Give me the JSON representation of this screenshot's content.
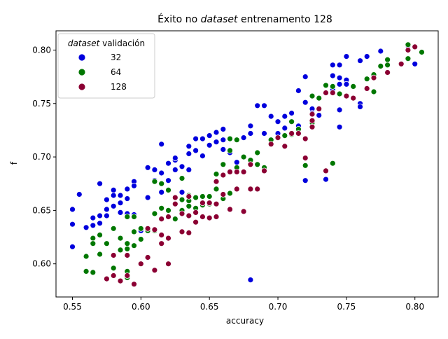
{
  "chart_data": {
    "type": "scatter",
    "title_prefix": "Éxito no ",
    "title_italic": "dataset",
    "title_suffix": " entrenamento 128",
    "xlabel": "accuracy",
    "ylabel": "f",
    "xlim": [
      0.538,
      0.817
    ],
    "ylim": [
      0.569,
      0.818
    ],
    "xticks": [
      0.55,
      0.6,
      0.65,
      0.7,
      0.75,
      0.8
    ],
    "xtick_labels": [
      "0.55",
      "0.60",
      "0.65",
      "0.70",
      "0.75",
      "0.80"
    ],
    "yticks": [
      0.6,
      0.65,
      0.7,
      0.75,
      0.8
    ],
    "ytick_labels": [
      "0.60",
      "0.65",
      "0.70",
      "0.75",
      "0.80"
    ],
    "grid": false,
    "legend": {
      "position": "top-left",
      "title_italic": "dataset",
      "title_suffix": " validación",
      "entries": [
        "32",
        "64",
        "128"
      ]
    },
    "series": [
      {
        "name": "32",
        "color": "#0000dd",
        "points": [
          [
            0.55,
            0.651
          ],
          [
            0.55,
            0.637
          ],
          [
            0.55,
            0.616
          ],
          [
            0.555,
            0.665
          ],
          [
            0.56,
            0.634
          ],
          [
            0.565,
            0.643
          ],
          [
            0.565,
            0.636
          ],
          [
            0.57,
            0.675
          ],
          [
            0.57,
            0.645
          ],
          [
            0.57,
            0.638
          ],
          [
            0.575,
            0.66
          ],
          [
            0.575,
            0.651
          ],
          [
            0.575,
            0.645
          ],
          [
            0.58,
            0.669
          ],
          [
            0.58,
            0.664
          ],
          [
            0.58,
            0.654
          ],
          [
            0.585,
            0.664
          ],
          [
            0.585,
            0.657
          ],
          [
            0.585,
            0.648
          ],
          [
            0.59,
            0.67
          ],
          [
            0.59,
            0.661
          ],
          [
            0.59,
            0.647
          ],
          [
            0.595,
            0.677
          ],
          [
            0.595,
            0.673
          ],
          [
            0.595,
            0.646
          ],
          [
            0.6,
            0.631
          ],
          [
            0.605,
            0.69
          ],
          [
            0.605,
            0.662
          ],
          [
            0.61,
            0.688
          ],
          [
            0.61,
            0.678
          ],
          [
            0.615,
            0.712
          ],
          [
            0.615,
            0.685
          ],
          [
            0.615,
            0.667
          ],
          [
            0.62,
            0.694
          ],
          [
            0.62,
            0.678
          ],
          [
            0.625,
            0.697
          ],
          [
            0.625,
            0.688
          ],
          [
            0.625,
            0.699
          ],
          [
            0.63,
            0.691
          ],
          [
            0.63,
            0.667
          ],
          [
            0.635,
            0.71
          ],
          [
            0.635,
            0.703
          ],
          [
            0.635,
            0.688
          ],
          [
            0.64,
            0.717
          ],
          [
            0.64,
            0.706
          ],
          [
            0.645,
            0.717
          ],
          [
            0.645,
            0.701
          ],
          [
            0.65,
            0.72
          ],
          [
            0.65,
            0.711
          ],
          [
            0.655,
            0.723
          ],
          [
            0.655,
            0.714
          ],
          [
            0.66,
            0.726
          ],
          [
            0.66,
            0.716
          ],
          [
            0.66,
            0.707
          ],
          [
            0.665,
            0.704
          ],
          [
            0.67,
            0.695
          ],
          [
            0.675,
            0.718
          ],
          [
            0.68,
            0.729
          ],
          [
            0.68,
            0.722
          ],
          [
            0.68,
            0.585
          ],
          [
            0.685,
            0.748
          ],
          [
            0.69,
            0.748
          ],
          [
            0.69,
            0.722
          ],
          [
            0.695,
            0.738
          ],
          [
            0.7,
            0.733
          ],
          [
            0.7,
            0.722
          ],
          [
            0.705,
            0.738
          ],
          [
            0.705,
            0.727
          ],
          [
            0.71,
            0.741
          ],
          [
            0.715,
            0.762
          ],
          [
            0.715,
            0.729
          ],
          [
            0.72,
            0.775
          ],
          [
            0.72,
            0.751
          ],
          [
            0.72,
            0.678
          ],
          [
            0.725,
            0.757
          ],
          [
            0.725,
            0.745
          ],
          [
            0.725,
            0.741
          ],
          [
            0.73,
            0.745
          ],
          [
            0.73,
            0.739
          ],
          [
            0.735,
            0.679
          ],
          [
            0.74,
            0.786
          ],
          [
            0.74,
            0.776
          ],
          [
            0.74,
            0.763
          ],
          [
            0.745,
            0.786
          ],
          [
            0.745,
            0.774
          ],
          [
            0.745,
            0.768
          ],
          [
            0.745,
            0.744
          ],
          [
            0.745,
            0.728
          ],
          [
            0.75,
            0.794
          ],
          [
            0.75,
            0.772
          ],
          [
            0.75,
            0.768
          ],
          [
            0.76,
            0.79
          ],
          [
            0.76,
            0.75
          ],
          [
            0.76,
            0.747
          ],
          [
            0.765,
            0.794
          ],
          [
            0.775,
            0.799
          ],
          [
            0.795,
            0.804
          ],
          [
            0.8,
            0.787
          ]
        ]
      },
      {
        "name": "64",
        "color": "#007700",
        "points": [
          [
            0.56,
            0.607
          ],
          [
            0.56,
            0.593
          ],
          [
            0.565,
            0.624
          ],
          [
            0.565,
            0.619
          ],
          [
            0.565,
            0.592
          ],
          [
            0.57,
            0.627
          ],
          [
            0.57,
            0.609
          ],
          [
            0.575,
            0.619
          ],
          [
            0.58,
            0.633
          ],
          [
            0.58,
            0.596
          ],
          [
            0.585,
            0.624
          ],
          [
            0.585,
            0.613
          ],
          [
            0.59,
            0.644
          ],
          [
            0.59,
            0.619
          ],
          [
            0.59,
            0.614
          ],
          [
            0.59,
            0.593
          ],
          [
            0.59,
            0.587
          ],
          [
            0.595,
            0.644
          ],
          [
            0.595,
            0.63
          ],
          [
            0.595,
            0.617
          ],
          [
            0.6,
            0.633
          ],
          [
            0.6,
            0.623
          ],
          [
            0.605,
            0.631
          ],
          [
            0.61,
            0.677
          ],
          [
            0.61,
            0.647
          ],
          [
            0.61,
            0.631
          ],
          [
            0.615,
            0.675
          ],
          [
            0.615,
            0.652
          ],
          [
            0.62,
            0.669
          ],
          [
            0.62,
            0.65
          ],
          [
            0.625,
            0.656
          ],
          [
            0.625,
            0.642
          ],
          [
            0.63,
            0.68
          ],
          [
            0.63,
            0.66
          ],
          [
            0.63,
            0.65
          ],
          [
            0.635,
            0.664
          ],
          [
            0.635,
            0.659
          ],
          [
            0.635,
            0.654
          ],
          [
            0.64,
            0.662
          ],
          [
            0.64,
            0.652
          ],
          [
            0.645,
            0.663
          ],
          [
            0.645,
            0.655
          ],
          [
            0.65,
            0.663
          ],
          [
            0.65,
            0.656
          ],
          [
            0.655,
            0.684
          ],
          [
            0.655,
            0.67
          ],
          [
            0.66,
            0.693
          ],
          [
            0.66,
            0.661
          ],
          [
            0.665,
            0.717
          ],
          [
            0.665,
            0.706
          ],
          [
            0.665,
            0.666
          ],
          [
            0.67,
            0.716
          ],
          [
            0.67,
            0.69
          ],
          [
            0.675,
            0.7
          ],
          [
            0.68,
            0.697
          ],
          [
            0.685,
            0.704
          ],
          [
            0.685,
            0.693
          ],
          [
            0.69,
            0.69
          ],
          [
            0.695,
            0.716
          ],
          [
            0.7,
            0.718
          ],
          [
            0.705,
            0.72
          ],
          [
            0.71,
            0.733
          ],
          [
            0.71,
            0.721
          ],
          [
            0.715,
            0.726
          ],
          [
            0.72,
            0.692
          ],
          [
            0.725,
            0.757
          ],
          [
            0.725,
            0.732
          ],
          [
            0.73,
            0.755
          ],
          [
            0.735,
            0.767
          ],
          [
            0.74,
            0.766
          ],
          [
            0.74,
            0.694
          ],
          [
            0.745,
            0.759
          ],
          [
            0.755,
            0.766
          ],
          [
            0.765,
            0.773
          ],
          [
            0.77,
            0.777
          ],
          [
            0.77,
            0.761
          ],
          [
            0.775,
            0.785
          ],
          [
            0.78,
            0.791
          ],
          [
            0.78,
            0.786
          ],
          [
            0.795,
            0.805
          ],
          [
            0.795,
            0.792
          ],
          [
            0.805,
            0.798
          ]
        ]
      },
      {
        "name": "128",
        "color": "#8b0033",
        "points": [
          [
            0.575,
            0.586
          ],
          [
            0.58,
            0.608
          ],
          [
            0.58,
            0.589
          ],
          [
            0.585,
            0.584
          ],
          [
            0.59,
            0.608
          ],
          [
            0.59,
            0.589
          ],
          [
            0.595,
            0.581
          ],
          [
            0.6,
            0.6
          ],
          [
            0.605,
            0.633
          ],
          [
            0.605,
            0.606
          ],
          [
            0.61,
            0.632
          ],
          [
            0.61,
            0.594
          ],
          [
            0.615,
            0.642
          ],
          [
            0.615,
            0.627
          ],
          [
            0.615,
            0.619
          ],
          [
            0.62,
            0.644
          ],
          [
            0.62,
            0.624
          ],
          [
            0.62,
            0.6
          ],
          [
            0.625,
            0.662
          ],
          [
            0.625,
            0.656
          ],
          [
            0.63,
            0.647
          ],
          [
            0.63,
            0.63
          ],
          [
            0.635,
            0.663
          ],
          [
            0.635,
            0.645
          ],
          [
            0.635,
            0.629
          ],
          [
            0.64,
            0.648
          ],
          [
            0.64,
            0.639
          ],
          [
            0.645,
            0.657
          ],
          [
            0.645,
            0.644
          ],
          [
            0.65,
            0.657
          ],
          [
            0.65,
            0.643
          ],
          [
            0.655,
            0.677
          ],
          [
            0.655,
            0.656
          ],
          [
            0.655,
            0.644
          ],
          [
            0.66,
            0.683
          ],
          [
            0.66,
            0.665
          ],
          [
            0.665,
            0.686
          ],
          [
            0.665,
            0.651
          ],
          [
            0.67,
            0.686
          ],
          [
            0.67,
            0.67
          ],
          [
            0.675,
            0.686
          ],
          [
            0.675,
            0.649
          ],
          [
            0.68,
            0.693
          ],
          [
            0.68,
            0.67
          ],
          [
            0.685,
            0.67
          ],
          [
            0.69,
            0.687
          ],
          [
            0.695,
            0.712
          ],
          [
            0.7,
            0.718
          ],
          [
            0.705,
            0.71
          ],
          [
            0.71,
            0.722
          ],
          [
            0.715,
            0.722
          ],
          [
            0.72,
            0.717
          ],
          [
            0.72,
            0.699
          ],
          [
            0.725,
            0.74
          ],
          [
            0.725,
            0.734
          ],
          [
            0.725,
            0.728
          ],
          [
            0.73,
            0.745
          ],
          [
            0.735,
            0.76
          ],
          [
            0.735,
            0.687
          ],
          [
            0.74,
            0.76
          ],
          [
            0.75,
            0.757
          ],
          [
            0.755,
            0.755
          ],
          [
            0.765,
            0.764
          ],
          [
            0.77,
            0.774
          ],
          [
            0.78,
            0.779
          ],
          [
            0.79,
            0.787
          ],
          [
            0.795,
            0.8
          ],
          [
            0.8,
            0.803
          ]
        ]
      }
    ]
  }
}
